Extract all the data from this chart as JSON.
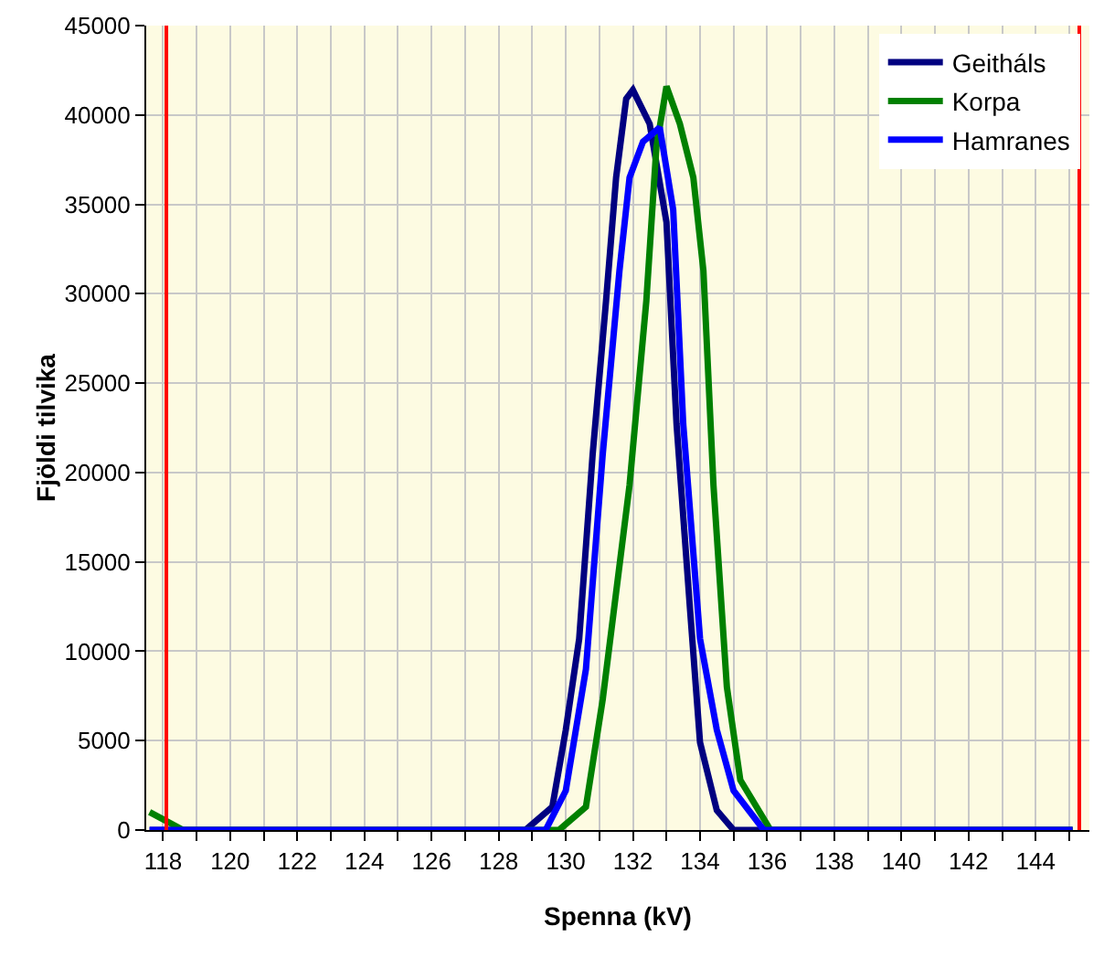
{
  "chart_data": {
    "type": "line",
    "xlabel": "Spenna (kV)",
    "ylabel": "Fjöldi tilvika",
    "xlim": [
      117.5,
      145.6
    ],
    "xticks": [
      118,
      {
        "value": 119,
        "label": null
      },
      120,
      {
        "value": 121,
        "label": null
      },
      122,
      {
        "value": 123,
        "label": null
      },
      124,
      {
        "value": 125,
        "label": null
      },
      126,
      {
        "value": 127,
        "label": null
      },
      128,
      {
        "value": 129,
        "label": null
      },
      130,
      {
        "value": 131,
        "label": null
      },
      132,
      {
        "value": 133,
        "label": null
      },
      134,
      {
        "value": 135,
        "label": null
      },
      136,
      {
        "value": 137,
        "label": null
      },
      138,
      {
        "value": 139,
        "label": null
      },
      140,
      {
        "value": 141,
        "label": null
      },
      142,
      {
        "value": 143,
        "label": null
      },
      144,
      {
        "value": 145,
        "label": null
      }
    ],
    "ylim": [
      0,
      45000
    ],
    "yticks": [
      0,
      5000,
      10000,
      15000,
      20000,
      25000,
      30000,
      35000,
      40000,
      45000
    ],
    "grid": true,
    "legend": "top right",
    "marker": "none",
    "line_style": "solid",
    "series": [
      {
        "name": "Geitháls",
        "color": "#000080",
        "x": [
          117.6,
          128.8,
          129.6,
          130.0,
          130.4,
          130.8,
          131.2,
          131.5,
          131.8,
          132.0,
          132.5,
          133.0,
          133.3,
          133.7,
          134.0,
          134.5,
          135.0,
          145.1
        ],
        "values": [
          0,
          0,
          1300,
          5600,
          10700,
          21000,
          29600,
          36500,
          40900,
          41400,
          39500,
          34000,
          22700,
          12400,
          4900,
          1100,
          0,
          0
        ]
      },
      {
        "name": "Korpa",
        "color": "#008000",
        "x": [
          117.6,
          118.6,
          129.8,
          130.6,
          131.1,
          131.9,
          132.4,
          132.7,
          133.0,
          133.4,
          133.8,
          134.1,
          134.4,
          134.8,
          135.2,
          136.1,
          145.1
        ],
        "values": [
          1000,
          0,
          0,
          1300,
          7300,
          19300,
          29600,
          38200,
          41600,
          39500,
          36500,
          31300,
          19300,
          8000,
          2800,
          0,
          0
        ]
      },
      {
        "name": "Hamranes",
        "color": "#0000ff",
        "x": [
          117.6,
          129.4,
          130.0,
          130.6,
          131.1,
          131.6,
          131.9,
          132.3,
          132.8,
          133.2,
          133.5,
          134.0,
          134.5,
          135.0,
          135.9,
          145.1
        ],
        "values": [
          0,
          0,
          2200,
          9000,
          21000,
          31300,
          36500,
          38500,
          39300,
          34700,
          22700,
          10700,
          5600,
          2200,
          0,
          0
        ]
      }
    ],
    "ref_lines": [
      {
        "axis": "x",
        "value": 118.1,
        "color": "#ff0000",
        "line_style": "solid"
      },
      {
        "axis": "x",
        "value": 145.3,
        "color": "#ff0000",
        "line_style": "solid"
      }
    ]
  }
}
